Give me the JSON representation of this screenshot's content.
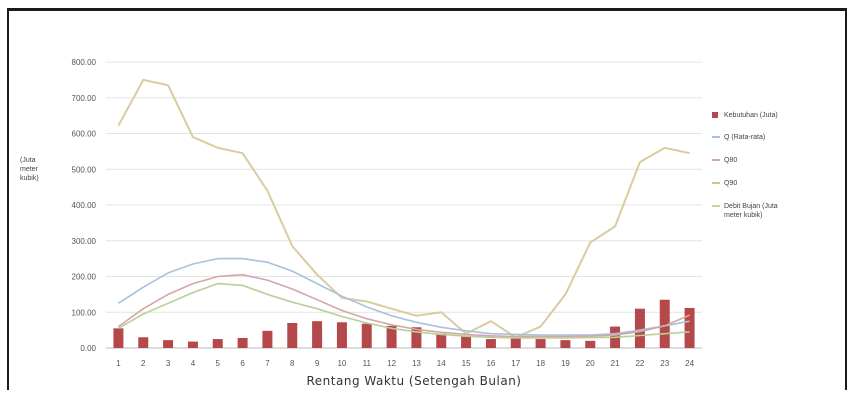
{
  "chart_data": {
    "type": "bar+line",
    "xlabel": "Rentang Waktu (Setengah Bulan)",
    "ylabel_lines": [
      "(Juta",
      "meter",
      "kubik)"
    ],
    "ylim": [
      0,
      800
    ],
    "yticks": [
      "0.00",
      "100.00",
      "200.00",
      "300.00",
      "400.00",
      "500.00",
      "600.00",
      "700.00",
      "800.00"
    ],
    "categories": [
      "1",
      "2",
      "3",
      "4",
      "5",
      "6",
      "7",
      "8",
      "9",
      "10",
      "11",
      "12",
      "13",
      "14",
      "15",
      "16",
      "17",
      "18",
      "19",
      "20",
      "21",
      "22",
      "23",
      "24"
    ],
    "bars": {
      "name": "Kebutuhan (Juta)",
      "color": "#b5484b",
      "values": [
        55,
        30,
        22,
        18,
        25,
        28,
        48,
        70,
        75,
        72,
        68,
        62,
        58,
        40,
        32,
        25,
        28,
        25,
        22,
        20,
        60,
        110,
        135,
        112
      ]
    },
    "series": [
      {
        "name": "Debit Bujan (Juta meter kubik)",
        "color": "#d9cc9e",
        "values": [
          622,
          750,
          735,
          590,
          560,
          545,
          440,
          285,
          205,
          140,
          130,
          110,
          90,
          100,
          40,
          75,
          30,
          60,
          150,
          295,
          340,
          520,
          560,
          545
        ]
      },
      {
        "name": "Q (Rata-rata)",
        "color": "#a8c2dc",
        "values": [
          125,
          170,
          210,
          235,
          250,
          250,
          240,
          215,
          180,
          145,
          115,
          90,
          72,
          58,
          48,
          40,
          38,
          36,
          36,
          36,
          40,
          50,
          62,
          75
        ]
      },
      {
        "name": "Q80",
        "color": "#d4a7a7",
        "values": [
          60,
          110,
          150,
          180,
          200,
          205,
          190,
          165,
          135,
          105,
          82,
          65,
          52,
          44,
          38,
          34,
          32,
          32,
          32,
          33,
          36,
          46,
          62,
          92
        ]
      },
      {
        "name": "Q90",
        "color": "#b8cf9a",
        "values": [
          55,
          95,
          125,
          155,
          180,
          175,
          150,
          128,
          110,
          88,
          70,
          55,
          45,
          38,
          33,
          30,
          28,
          28,
          28,
          29,
          30,
          35,
          40,
          45
        ]
      }
    ],
    "legend_position": "right",
    "grid": true
  }
}
